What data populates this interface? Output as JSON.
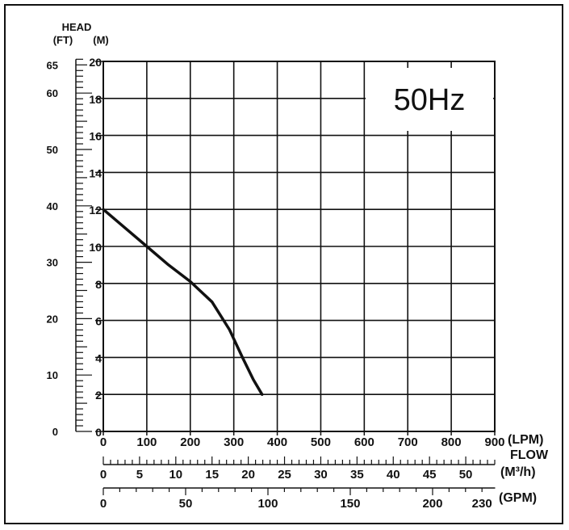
{
  "chart_data": {
    "type": "line",
    "title": "50Hz",
    "y_axis": {
      "header": "HEAD",
      "unit_ft": "(FT)",
      "unit_m": "(M)",
      "ylim_m": [
        0,
        20
      ],
      "ticks_m": [
        "0",
        "2",
        "4",
        "6",
        "8",
        "10",
        "12",
        "14",
        "16",
        "18",
        "20"
      ],
      "ticks_ft": [
        "0",
        "10",
        "20",
        "30",
        "40",
        "50",
        "60",
        "65"
      ],
      "ticks_ft_values": [
        0,
        10,
        20,
        30,
        40,
        50,
        60,
        65
      ]
    },
    "x_axis": {
      "label": "FLOW",
      "unit_lpm": "(LPM)",
      "unit_m3h": "(M³/h)",
      "unit_gpm": "(GPM)",
      "xlim_lpm": [
        0,
        900
      ],
      "ticks_lpm": [
        "0",
        "100",
        "200",
        "300",
        "400",
        "500",
        "600",
        "700",
        "800",
        "900"
      ],
      "ticks_m3h": [
        "0",
        "5",
        "10",
        "15",
        "20",
        "25",
        "30",
        "35",
        "40",
        "45",
        "50"
      ],
      "ticks_gpm": [
        "0",
        "50",
        "100",
        "150",
        "200",
        "230"
      ],
      "ticks_gpm_values": [
        0,
        50,
        100,
        150,
        200,
        230
      ]
    },
    "grid": true,
    "series": [
      {
        "points": [
          [
            0,
            12
          ],
          [
            50,
            11
          ],
          [
            100,
            10
          ],
          [
            150,
            9
          ],
          [
            200,
            8.1
          ],
          [
            250,
            7
          ],
          [
            290,
            5.5
          ],
          [
            320,
            4
          ],
          [
            345,
            2.8
          ],
          [
            365,
            2
          ]
        ]
      }
    ]
  }
}
